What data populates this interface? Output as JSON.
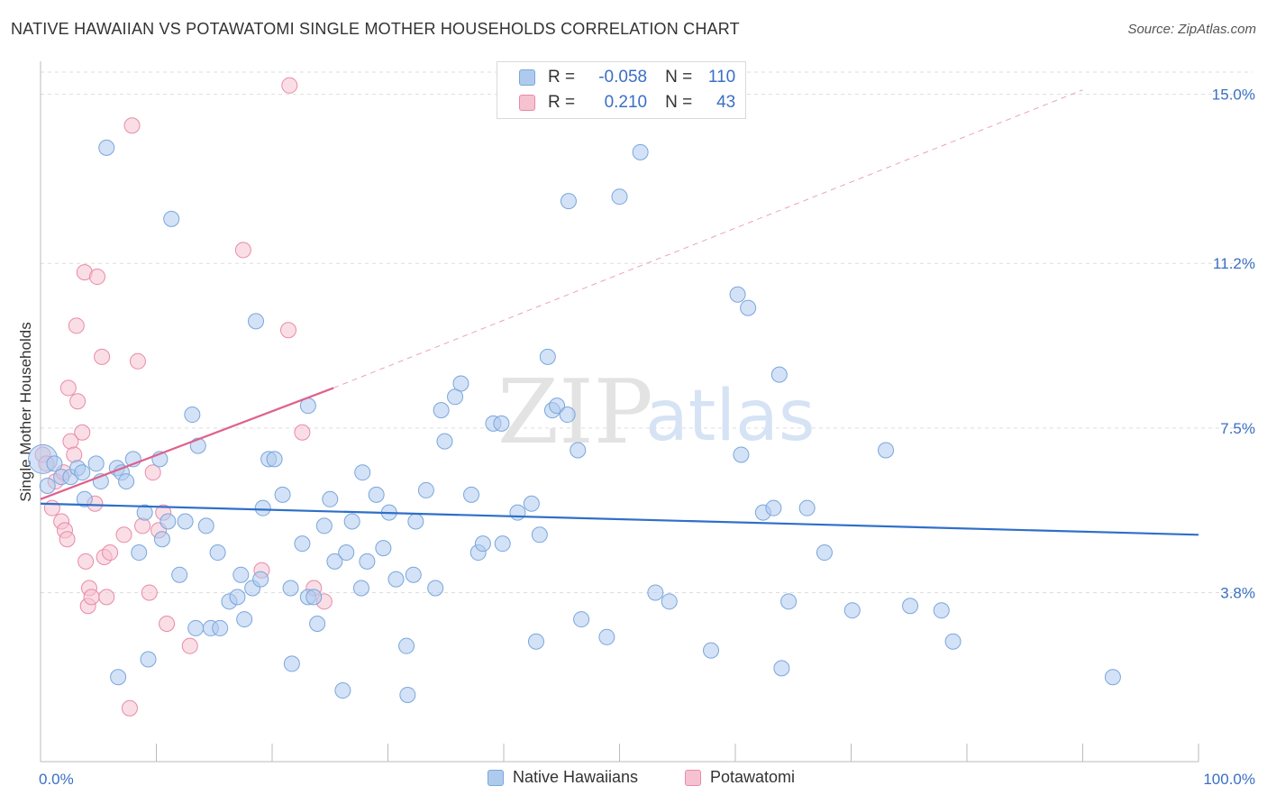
{
  "title": "NATIVE HAWAIIAN VS POTAWATOMI SINGLE MOTHER HOUSEHOLDS CORRELATION CHART",
  "source": "Source: ZipAtlas.com",
  "watermark": {
    "zip": "ZIP",
    "atlas": "atlas"
  },
  "colors": {
    "blue_fill": "#aecbee",
    "blue_stroke": "#7aa6dc",
    "blue_line": "#2f6fc9",
    "pink_fill": "#f6c2d2",
    "pink_stroke": "#e98aa8",
    "pink_line": "#e0608c",
    "grid": "#dddddd",
    "axis_text": "#3a6fc4"
  },
  "legend_top": {
    "rows": [
      {
        "r_label": "R =",
        "r_value": "-0.058",
        "n_label": "N =",
        "n_value": "110"
      },
      {
        "r_label": "R =",
        "r_value": "0.210",
        "n_label": "N =",
        "n_value": "43"
      }
    ]
  },
  "legend_bottom": {
    "items": [
      "Native Hawaiians",
      "Potawatomi"
    ]
  },
  "chart_data": {
    "type": "scatter",
    "title": "NATIVE HAWAIIAN VS POTAWATOMI SINGLE MOTHER HOUSEHOLDS CORRELATION CHART",
    "ylabel": "Single Mother Households",
    "xlim": [
      0,
      100
    ],
    "ylim": [
      0,
      15.5
    ],
    "x_tick_labels": [
      "0.0%",
      "100.0%"
    ],
    "y_ticks": [
      3.8,
      7.5,
      11.2,
      15.0
    ],
    "y_tick_labels": [
      "3.8%",
      "7.5%",
      "11.2%",
      "15.0%"
    ],
    "grid": true,
    "legend_position": "top-center",
    "series": [
      {
        "name": "Native Hawaiians",
        "r": -0.058,
        "n": 110,
        "trend": {
          "x": [
            0,
            100
          ],
          "y": [
            5.8,
            5.1
          ]
        },
        "points": [
          [
            0.2,
            6.8
          ],
          [
            0.6,
            6.2
          ],
          [
            1.2,
            6.7
          ],
          [
            1.8,
            6.4
          ],
          [
            2.6,
            6.4
          ],
          [
            3.2,
            6.6
          ],
          [
            3.6,
            6.5
          ],
          [
            3.8,
            5.9
          ],
          [
            5.2,
            6.3
          ],
          [
            6.6,
            6.6
          ],
          [
            7.0,
            6.5
          ],
          [
            5.7,
            13.8
          ],
          [
            7.4,
            6.3
          ],
          [
            4.8,
            6.7
          ],
          [
            8.0,
            6.8
          ],
          [
            8.5,
            4.7
          ],
          [
            6.7,
            1.9
          ],
          [
            9.3,
            2.3
          ],
          [
            9.0,
            5.6
          ],
          [
            10.5,
            5.0
          ],
          [
            11.3,
            12.2
          ],
          [
            10.3,
            6.8
          ],
          [
            11.0,
            5.4
          ],
          [
            12.0,
            4.2
          ],
          [
            12.5,
            5.4
          ],
          [
            13.4,
            3.0
          ],
          [
            13.1,
            7.8
          ],
          [
            13.6,
            7.1
          ],
          [
            14.3,
            5.3
          ],
          [
            14.7,
            3.0
          ],
          [
            15.3,
            4.7
          ],
          [
            15.5,
            3.0
          ],
          [
            16.3,
            3.6
          ],
          [
            17.0,
            3.7
          ],
          [
            17.3,
            4.2
          ],
          [
            17.6,
            3.2
          ],
          [
            18.3,
            3.9
          ],
          [
            18.6,
            9.9
          ],
          [
            19.0,
            4.1
          ],
          [
            19.2,
            5.7
          ],
          [
            19.7,
            6.8
          ],
          [
            20.2,
            6.8
          ],
          [
            20.9,
            6.0
          ],
          [
            21.6,
            3.9
          ],
          [
            21.7,
            2.2
          ],
          [
            22.6,
            4.9
          ],
          [
            23.1,
            3.7
          ],
          [
            23.1,
            8.0
          ],
          [
            23.6,
            3.7
          ],
          [
            23.9,
            3.1
          ],
          [
            24.5,
            5.3
          ],
          [
            25.0,
            5.9
          ],
          [
            25.4,
            4.5
          ],
          [
            26.1,
            1.6
          ],
          [
            26.4,
            4.7
          ],
          [
            26.9,
            5.4
          ],
          [
            27.7,
            3.9
          ],
          [
            27.8,
            6.5
          ],
          [
            28.2,
            4.5
          ],
          [
            29.0,
            6.0
          ],
          [
            29.6,
            4.8
          ],
          [
            30.1,
            5.6
          ],
          [
            30.7,
            4.1
          ],
          [
            31.6,
            2.6
          ],
          [
            31.7,
            1.5
          ],
          [
            32.2,
            4.2
          ],
          [
            32.4,
            5.4
          ],
          [
            33.3,
            6.1
          ],
          [
            34.1,
            3.9
          ],
          [
            34.6,
            7.9
          ],
          [
            34.9,
            7.2
          ],
          [
            35.8,
            8.2
          ],
          [
            36.3,
            8.5
          ],
          [
            37.2,
            6.0
          ],
          [
            37.8,
            4.7
          ],
          [
            38.2,
            4.9
          ],
          [
            39.1,
            7.6
          ],
          [
            39.8,
            7.6
          ],
          [
            39.9,
            4.9
          ],
          [
            41.2,
            5.6
          ],
          [
            42.4,
            5.8
          ],
          [
            42.8,
            2.7
          ],
          [
            43.1,
            5.1
          ],
          [
            43.8,
            9.1
          ],
          [
            44.2,
            7.9
          ],
          [
            44.6,
            8.0
          ],
          [
            45.5,
            7.8
          ],
          [
            45.6,
            12.6
          ],
          [
            46.4,
            7.0
          ],
          [
            46.7,
            3.2
          ],
          [
            48.9,
            2.8
          ],
          [
            50.0,
            12.7
          ],
          [
            51.8,
            13.7
          ],
          [
            53.1,
            3.8
          ],
          [
            54.3,
            3.6
          ],
          [
            57.9,
            2.5
          ],
          [
            60.2,
            10.5
          ],
          [
            60.5,
            6.9
          ],
          [
            61.1,
            10.2
          ],
          [
            62.4,
            5.6
          ],
          [
            63.3,
            5.7
          ],
          [
            63.8,
            8.7
          ],
          [
            64.0,
            2.1
          ],
          [
            64.6,
            3.6
          ],
          [
            66.2,
            5.7
          ],
          [
            67.7,
            4.7
          ],
          [
            70.1,
            3.4
          ],
          [
            73.0,
            7.0
          ],
          [
            75.1,
            3.5
          ],
          [
            77.8,
            3.4
          ],
          [
            78.8,
            2.7
          ],
          [
            92.6,
            1.9
          ]
        ]
      },
      {
        "name": "Potawatomi",
        "r": 0.21,
        "n": 43,
        "trend": {
          "x": [
            0,
            25.3
          ],
          "y": [
            5.9,
            8.4
          ]
        },
        "trend_extended": {
          "x": [
            25.3,
            90
          ],
          "y": [
            8.4,
            15.1
          ]
        },
        "points": [
          [
            0.2,
            6.9
          ],
          [
            0.5,
            6.7
          ],
          [
            1.0,
            5.7
          ],
          [
            1.3,
            6.3
          ],
          [
            1.8,
            5.4
          ],
          [
            2.0,
            6.5
          ],
          [
            2.1,
            5.2
          ],
          [
            2.3,
            5.0
          ],
          [
            2.4,
            8.4
          ],
          [
            2.6,
            7.2
          ],
          [
            2.9,
            6.9
          ],
          [
            3.1,
            9.8
          ],
          [
            3.2,
            8.1
          ],
          [
            3.6,
            7.4
          ],
          [
            3.8,
            11.0
          ],
          [
            3.9,
            4.5
          ],
          [
            4.1,
            3.5
          ],
          [
            4.2,
            3.9
          ],
          [
            4.4,
            3.7
          ],
          [
            4.7,
            5.8
          ],
          [
            4.9,
            10.9
          ],
          [
            5.3,
            9.1
          ],
          [
            5.5,
            4.6
          ],
          [
            5.7,
            3.7
          ],
          [
            6.0,
            4.7
          ],
          [
            7.2,
            5.1
          ],
          [
            7.7,
            1.2
          ],
          [
            7.9,
            14.3
          ],
          [
            8.4,
            9.0
          ],
          [
            8.8,
            5.3
          ],
          [
            9.4,
            3.8
          ],
          [
            9.7,
            6.5
          ],
          [
            10.2,
            5.2
          ],
          [
            10.6,
            5.6
          ],
          [
            10.9,
            3.1
          ],
          [
            12.9,
            2.6
          ],
          [
            17.5,
            11.5
          ],
          [
            19.1,
            4.3
          ],
          [
            21.4,
            9.7
          ],
          [
            22.6,
            7.4
          ],
          [
            21.5,
            15.2
          ],
          [
            23.6,
            3.9
          ],
          [
            24.5,
            3.6
          ]
        ]
      }
    ]
  }
}
